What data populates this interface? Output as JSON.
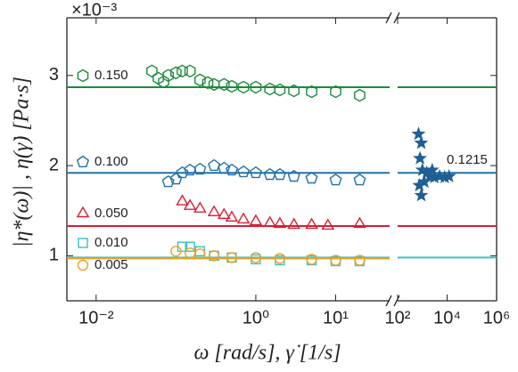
{
  "chart_data": [
    {
      "type": "scatter",
      "x_log": true,
      "x_label": "ω [rad/s], γ̇ [1/s]",
      "y_label": "|η*(ω)| , η(γ̇) [Pa·s]",
      "y_scale_label": "×10⁻³",
      "xlim": [
        0.0043,
        47.4
      ],
      "ylim": [
        0.5,
        3.64
      ],
      "xticks": [
        {
          "value": 0.01,
          "label": "10⁻²"
        },
        {
          "value": 1,
          "label": "10⁰"
        },
        {
          "value": 10,
          "label": "10¹"
        }
      ],
      "yticks": [
        1,
        2,
        3
      ],
      "grid": false,
      "series": [
        {
          "name": "0.150",
          "color": "#1d8a3c",
          "marker": "hexagon",
          "level": 2.87,
          "x": [
            0.05,
            0.06,
            0.07,
            0.08,
            0.1,
            0.12,
            0.15,
            0.2,
            0.25,
            0.3,
            0.4,
            0.5,
            0.7,
            1,
            1.5,
            2,
            3,
            5,
            10,
            20
          ],
          "values": [
            3.05,
            2.97,
            2.93,
            3.0,
            3.03,
            3.05,
            3.05,
            2.95,
            2.92,
            2.9,
            2.9,
            2.88,
            2.87,
            2.87,
            2.85,
            2.84,
            2.83,
            2.82,
            2.82,
            2.78
          ]
        },
        {
          "name": "0.100",
          "color": "#2271a8",
          "marker": "pentagon",
          "level": 1.92,
          "x": [
            0.08,
            0.1,
            0.12,
            0.15,
            0.2,
            0.3,
            0.4,
            0.5,
            0.7,
            1,
            1.5,
            2,
            3,
            5,
            10,
            20
          ],
          "values": [
            1.82,
            1.85,
            1.92,
            1.95,
            1.96,
            2.0,
            1.97,
            1.95,
            1.93,
            1.92,
            1.9,
            1.9,
            1.88,
            1.86,
            1.84,
            1.84
          ]
        },
        {
          "name": "0.050",
          "color": "#d42032",
          "marker": "triangle",
          "level": 1.33,
          "x": [
            0.12,
            0.15,
            0.2,
            0.3,
            0.4,
            0.5,
            0.7,
            1,
            1.5,
            2,
            3,
            5,
            8,
            20
          ],
          "values": [
            1.6,
            1.55,
            1.52,
            1.48,
            1.45,
            1.42,
            1.4,
            1.38,
            1.36,
            1.35,
            1.34,
            1.34,
            1.33,
            1.35
          ]
        },
        {
          "name": "0.010",
          "color": "#3cc0c8",
          "marker": "square",
          "level": 0.98,
          "x": [
            0.12,
            0.15,
            0.2,
            0.3,
            0.5,
            1,
            2,
            5,
            10,
            20
          ],
          "values": [
            1.1,
            1.1,
            1.05,
            1.0,
            0.98,
            0.96,
            0.95,
            0.95,
            0.94,
            0.94
          ]
        },
        {
          "name": "0.005",
          "color": "#f0a020",
          "marker": "circle",
          "level": 0.97,
          "x": [
            0.1,
            0.15,
            0.2,
            0.3,
            0.5,
            1,
            2,
            5,
            10,
            20
          ],
          "values": [
            1.05,
            1.03,
            1.02,
            1.0,
            0.98,
            0.98,
            0.97,
            0.96,
            0.95,
            0.95
          ]
        }
      ]
    },
    {
      "type": "scatter",
      "x_log": true,
      "xlim": [
        100,
        1000000
      ],
      "xticks": [
        {
          "value": 100,
          "label": "10²"
        },
        {
          "value": 10000,
          "label": "10⁴"
        },
        {
          "value": 1000000,
          "label": "10⁶"
        }
      ],
      "levels": [
        {
          "value": 2.87,
          "color": "#1d8a3c"
        },
        {
          "value": 1.92,
          "color": "#2271a8"
        },
        {
          "value": 1.33,
          "color": "#d42032"
        },
        {
          "value": 0.98,
          "color": "#3cc0c8"
        }
      ],
      "series": [
        {
          "name": "0.1215",
          "color": "#1f5f95",
          "marker": "star",
          "x": [
            700,
            900,
            800,
            1000,
            1200,
            900,
            750,
            1500,
            2000,
            2500,
            3000,
            5000,
            8000,
            12000
          ],
          "values": [
            2.35,
            2.25,
            2.08,
            1.95,
            1.82,
            1.67,
            1.78,
            1.92,
            1.88,
            1.95,
            1.87,
            1.88,
            1.87,
            1.88
          ]
        }
      ]
    }
  ]
}
